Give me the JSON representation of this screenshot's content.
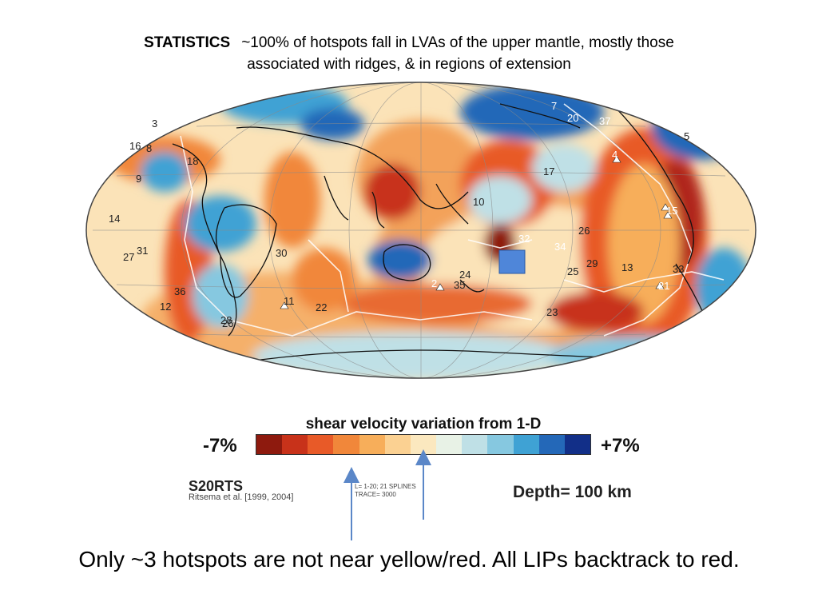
{
  "title": {
    "lead": "STATISTICS",
    "line1": "~100% of hotspots fall in LVAs  of the upper mantle, mostly those",
    "line2": "associated with ridges, & in regions of extension"
  },
  "map": {
    "projection": "Hammer-Aitoff world map (Pacific-centered)",
    "hotspots": [
      "3",
      "16",
      "8",
      "18",
      "9",
      "14",
      "27",
      "31",
      "30",
      "36",
      "12",
      "28",
      "26",
      "11",
      "22",
      "2",
      "35",
      "24",
      "32",
      "34",
      "10",
      "17",
      "7",
      "20",
      "37",
      "5",
      "4",
      "15",
      "26",
      "25",
      "29",
      "13",
      "33",
      "21",
      "23"
    ]
  },
  "legend": {
    "title": "shear velocity variation from 1-D",
    "min_label": "-7%",
    "max_label": "+7%",
    "colors": [
      "#8e1a0e",
      "#c8321a",
      "#e85a28",
      "#f1873a",
      "#f7ae5a",
      "#fbd192",
      "#fbe8bf",
      "#e8f2e6",
      "#bfe0e6",
      "#86c8e0",
      "#3fa2d4",
      "#2468b8",
      "#122f88"
    ],
    "model": "S20RTS",
    "citation": "Ritsema et al. [1999, 2004]",
    "params_line1": "L= 1-20; 21 SPLINES",
    "params_line2": "TRACE= 3000",
    "depth": "Depth= 100 km"
  },
  "caption": "Only ~3 hotspots are not near yellow/red. All LIPs backtrack to red."
}
